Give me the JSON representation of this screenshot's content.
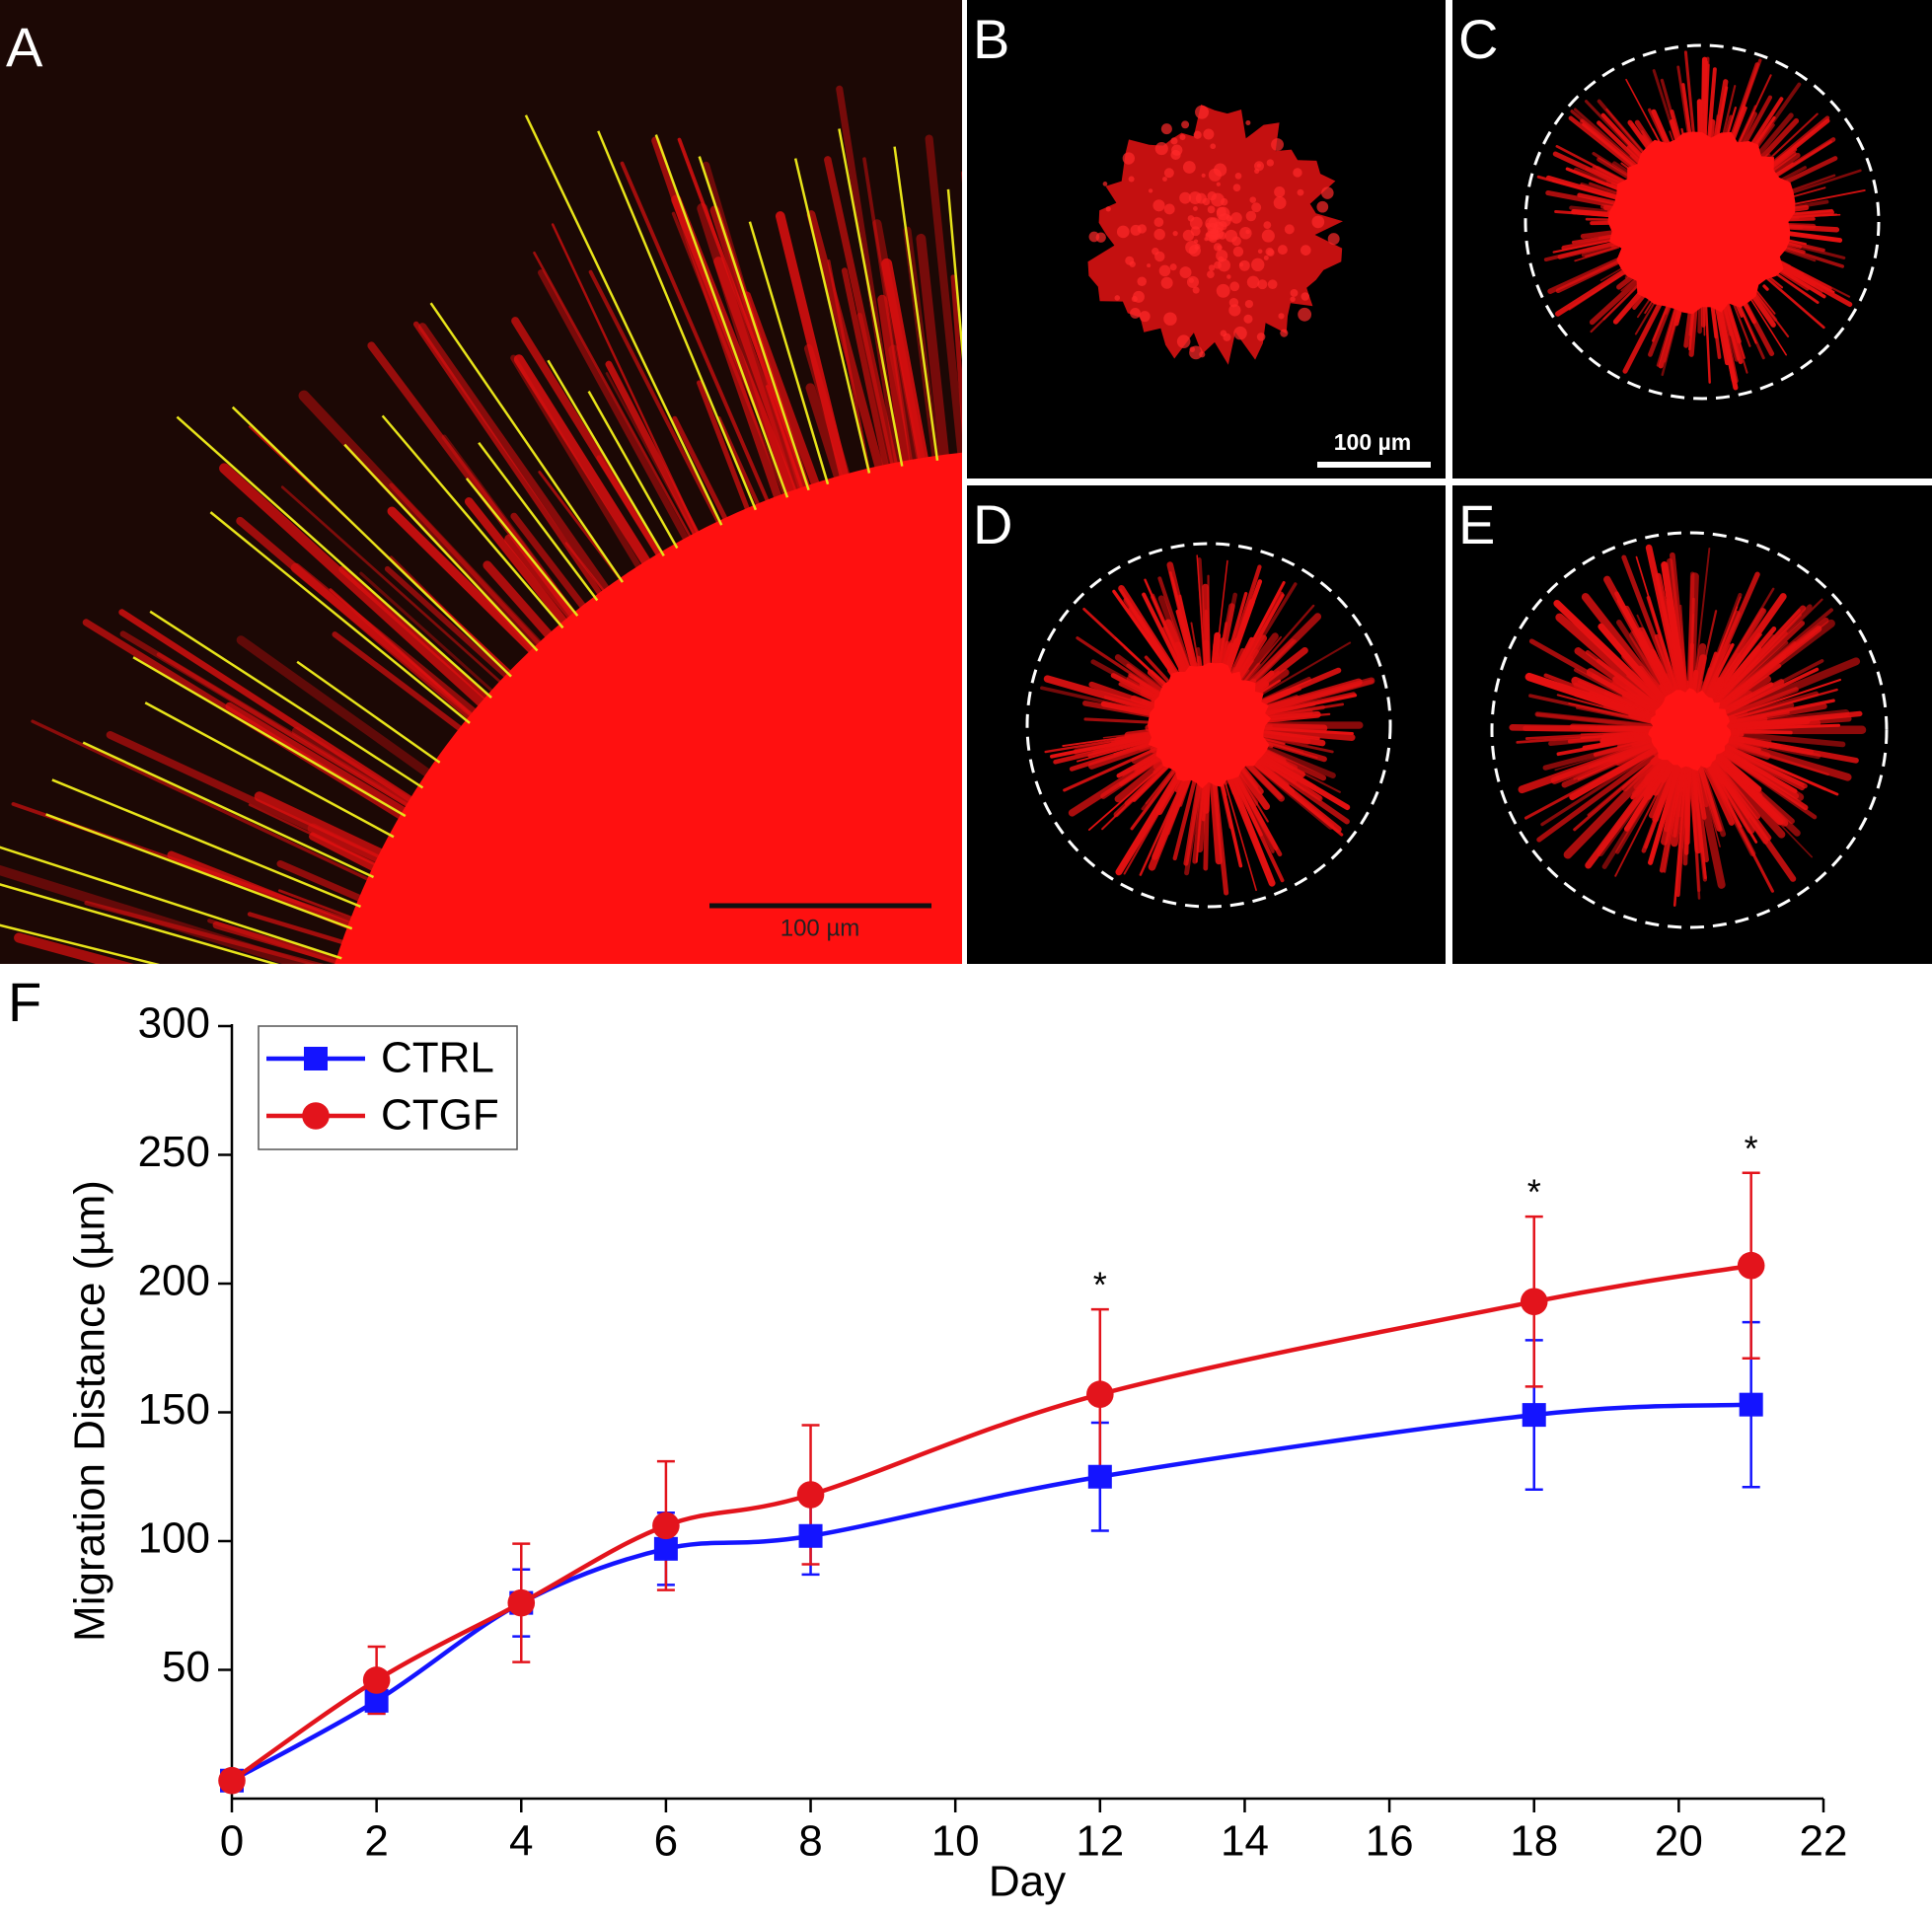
{
  "figure": {
    "panel_labels": [
      "A",
      "B",
      "C",
      "D",
      "E",
      "F"
    ],
    "scale_bar_labels": [
      "100 µm",
      "100 µm"
    ]
  },
  "chart_data": {
    "type": "line",
    "y_label": "Migration Distance (µm)",
    "x_label": "Day",
    "x": [
      0,
      2,
      4,
      6,
      8,
      12,
      18,
      21
    ],
    "series": [
      {
        "name": "CTRL",
        "color": "#1414ff",
        "marker": "square",
        "values": [
          7,
          38,
          76,
          97,
          102,
          125,
          149,
          153
        ],
        "errors": [
          2,
          5,
          13,
          14,
          15,
          21,
          29,
          32
        ]
      },
      {
        "name": "CTGF",
        "color": "#e3141c",
        "marker": "circle",
        "values": [
          7,
          46,
          76,
          106,
          118,
          157,
          193,
          207
        ],
        "errors": [
          3,
          13,
          23,
          25,
          27,
          33,
          33,
          36
        ]
      }
    ],
    "annotations": [
      {
        "x": 12,
        "text": "*"
      },
      {
        "x": 18,
        "text": "*"
      },
      {
        "x": 21,
        "text": "*"
      }
    ],
    "xlim": [
      0,
      22
    ],
    "xticks": [
      0,
      2,
      4,
      6,
      8,
      10,
      12,
      14,
      16,
      18,
      20,
      22
    ],
    "ylim": [
      0,
      300
    ],
    "yticks": [
      50,
      100,
      150,
      200,
      250,
      300
    ],
    "grid": false,
    "legend": "top-left"
  }
}
